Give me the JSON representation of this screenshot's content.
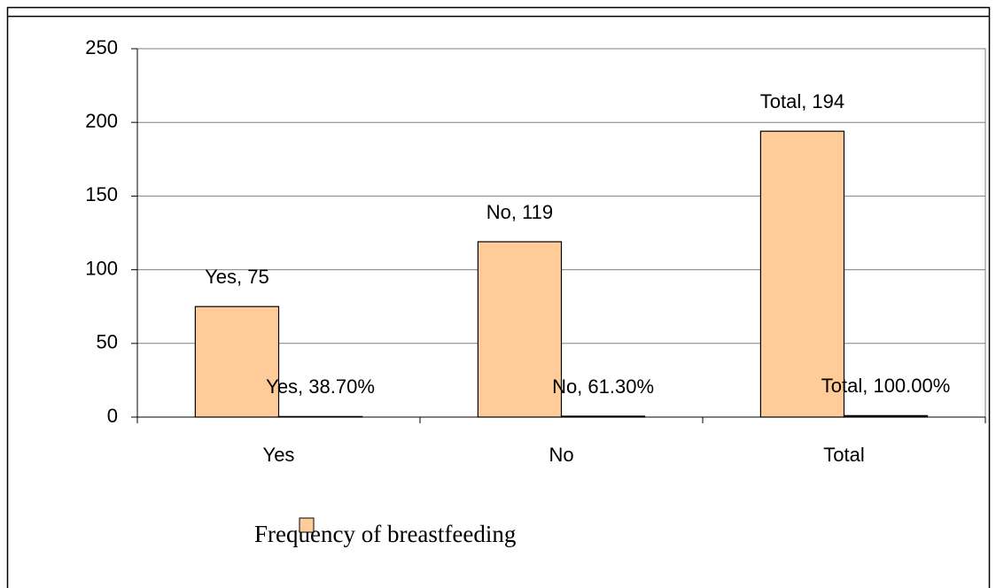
{
  "chart_data": {
    "type": "bar",
    "categories": [
      "Yes",
      "No",
      "Total"
    ],
    "series": [
      {
        "name": "Frequency of breastfeeding",
        "color": "#ffcc99",
        "values": [
          75,
          119,
          194
        ],
        "value_labels": [
          "Yes, 75",
          "No, 119",
          "Total, 194"
        ]
      },
      {
        "color": "#222222",
        "values": [
          0.387,
          0.613,
          1.0
        ],
        "value_labels": [
          "Yes, 38.70%",
          "No, 61.30%",
          "Total, 100.00%"
        ]
      }
    ],
    "ylim": [
      0,
      250
    ],
    "yticks": [
      0,
      50,
      100,
      150,
      200,
      250
    ],
    "grid": true,
    "legend": "bottom"
  }
}
